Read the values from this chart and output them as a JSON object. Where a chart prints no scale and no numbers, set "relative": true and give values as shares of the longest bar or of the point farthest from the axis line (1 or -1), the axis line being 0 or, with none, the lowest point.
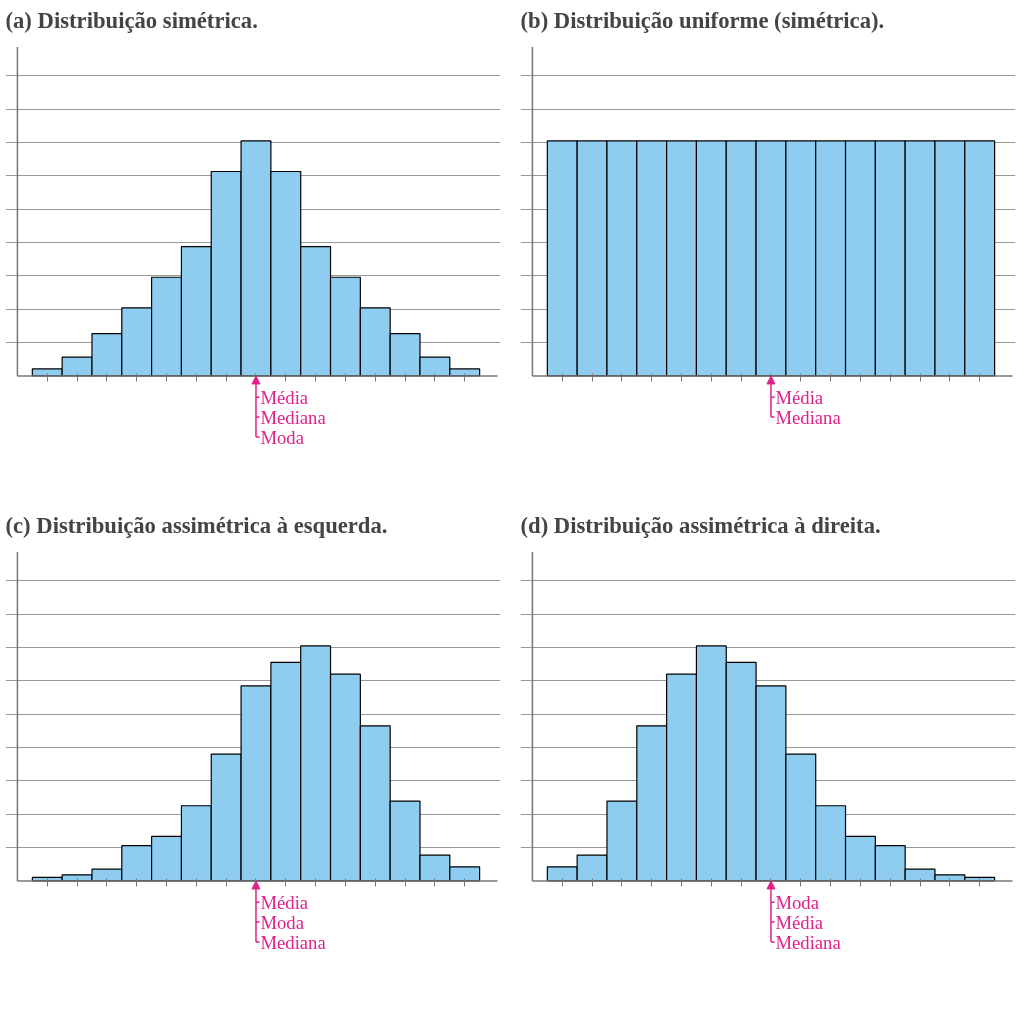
{
  "chart_data": [
    {
      "type": "bar",
      "relative": true,
      "title": "(a)  Distribuição simétrica.",
      "categories": [
        null,
        null,
        null,
        null,
        null,
        null,
        null,
        null,
        null,
        null,
        null,
        null,
        null,
        null,
        null
      ],
      "color": "#8ecdf0",
      "grid": "y",
      "values": [
        0.03,
        0.08,
        0.18,
        0.29,
        0.42,
        0.55,
        0.87,
        1,
        0.87,
        0.55,
        0.42,
        0.29,
        0.18,
        0.08,
        0.03
      ],
      "annotations": [
        "Média",
        "Mediana",
        "Moda"
      ]
    },
    {
      "type": "bar",
      "relative": true,
      "title": "(b)  Distribuição uniforme (simétrica).",
      "categories": [
        null,
        null,
        null,
        null,
        null,
        null,
        null,
        null,
        null,
        null,
        null,
        null,
        null,
        null,
        null
      ],
      "color": "#8ecdf0",
      "grid": "y",
      "values": [
        1,
        1,
        1,
        1,
        1,
        1,
        1,
        1,
        1,
        1,
        1,
        1,
        1,
        1,
        1
      ],
      "annotations": [
        "Média",
        "Mediana"
      ]
    },
    {
      "type": "bar",
      "relative": true,
      "title": "(c)  Distribuição assimétrica à esquerda.",
      "categories": [
        null,
        null,
        null,
        null,
        null,
        null,
        null,
        null,
        null,
        null,
        null,
        null,
        null,
        null,
        null
      ],
      "color": "#8ecdf0",
      "grid": "y",
      "values": [
        0.015,
        0.026,
        0.05,
        0.15,
        0.19,
        0.32,
        0.54,
        0.83,
        0.93,
        1,
        0.88,
        0.66,
        0.34,
        0.11,
        0.06
      ],
      "annotations": [
        "Média",
        "Moda",
        "Mediana"
      ]
    },
    {
      "type": "bar",
      "relative": true,
      "title": "(d)  Distribuição assimétrica à direita.",
      "categories": [
        null,
        null,
        null,
        null,
        null,
        null,
        null,
        null,
        null,
        null,
        null,
        null,
        null,
        null,
        null
      ],
      "color": "#8ecdf0",
      "grid": "y",
      "values": [
        0.06,
        0.11,
        0.34,
        0.66,
        0.88,
        1,
        0.93,
        0.83,
        0.54,
        0.32,
        0.19,
        0.15,
        0.05,
        0.026,
        0.015
      ],
      "annotations": [
        "Moda",
        "Média",
        "Mediana"
      ]
    }
  ]
}
